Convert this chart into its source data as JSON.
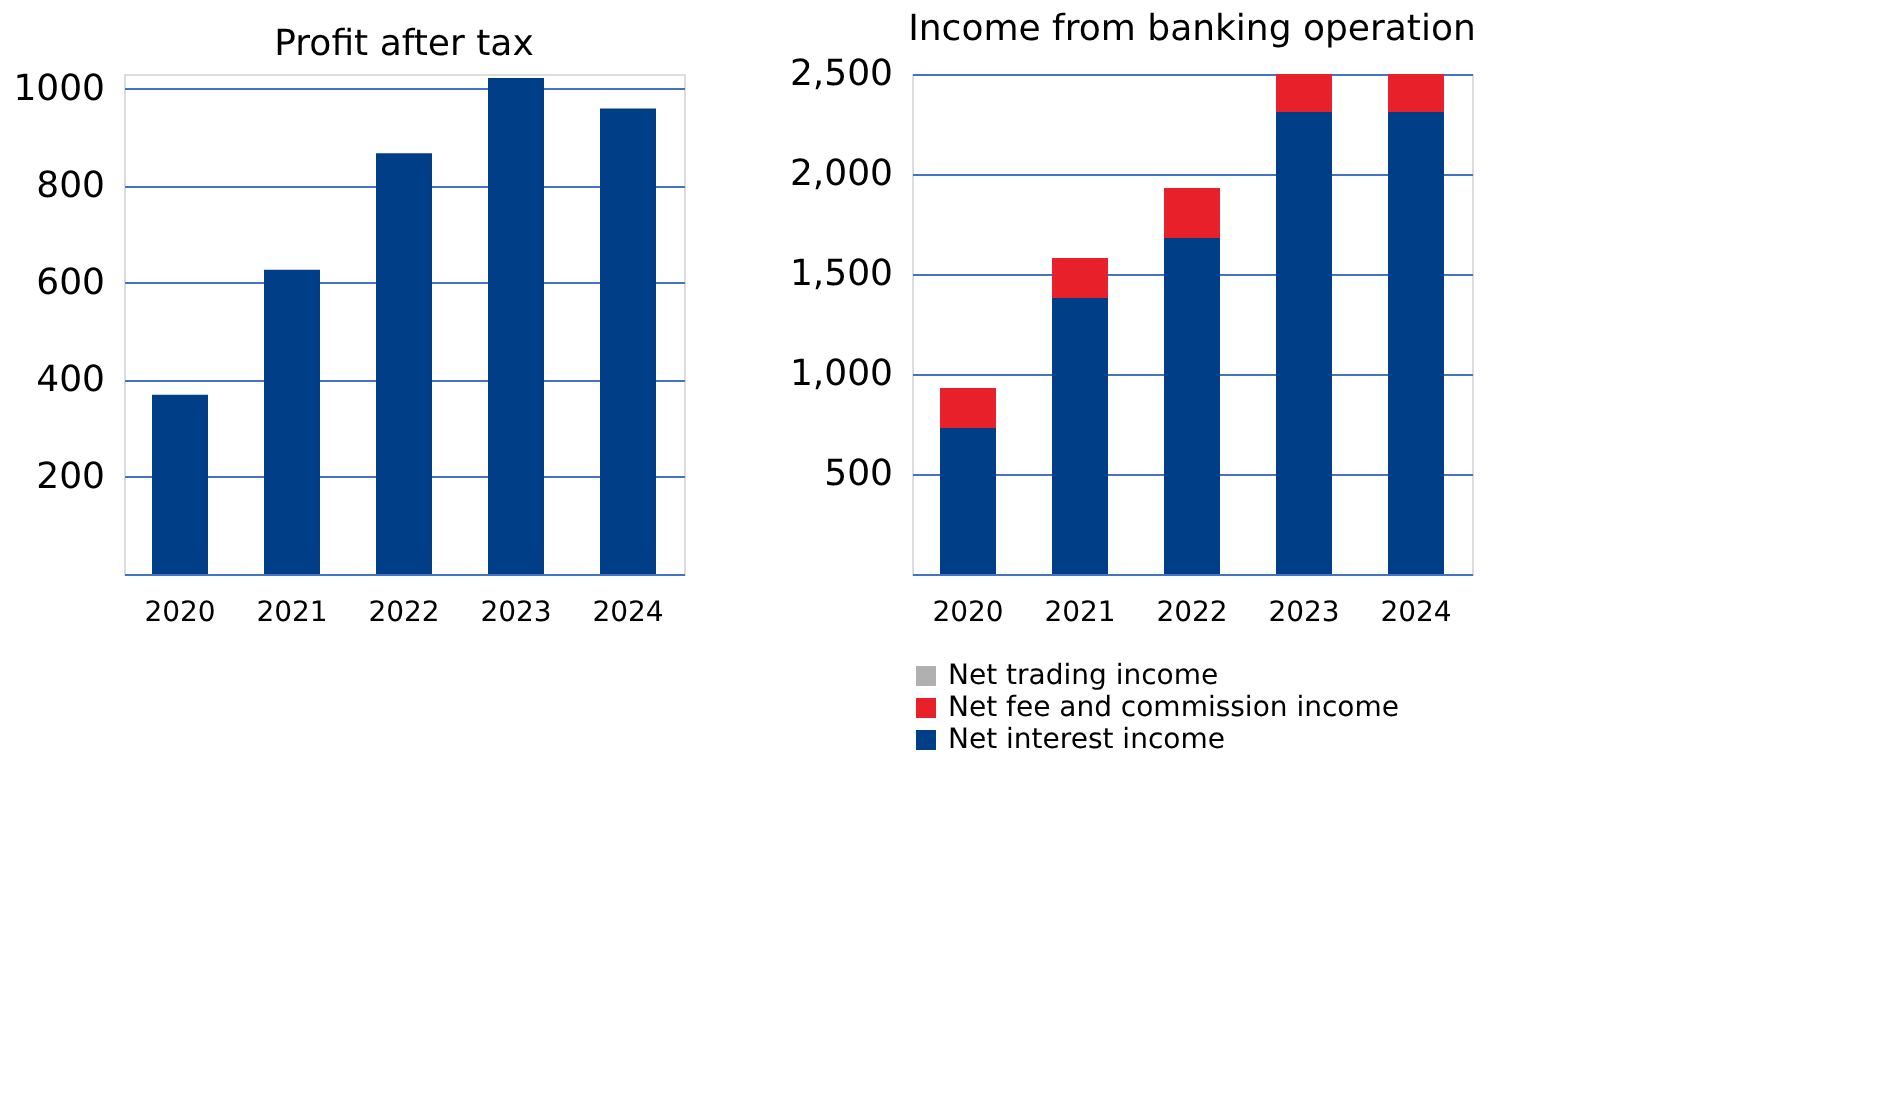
{
  "chart_data": [
    {
      "type": "bar",
      "title": "Profit after tax",
      "categories": [
        "2020",
        "2021",
        "2022",
        "2023",
        "2024"
      ],
      "series": [
        {
          "color": "#003f87",
          "values": [
            369,
            627,
            867,
            1022,
            959
          ]
        }
      ],
      "ylim": [
        0,
        1030
      ],
      "yticks": [
        200,
        400,
        600,
        800,
        1000
      ],
      "grid": "y",
      "legend": false
    },
    {
      "type": "bar",
      "title": "Income from banking operation",
      "categories": [
        "2020",
        "2021",
        "2022",
        "2023",
        "2024"
      ],
      "stacked": true,
      "series": [
        {
          "name": "Net interest income",
          "color": "#003f87",
          "values": [
            730,
            1380,
            1680,
            2310,
            2310
          ]
        },
        {
          "name": "Net fee and commission income",
          "color": "#e8202a",
          "values": [
            200,
            200,
            250,
            190,
            190
          ]
        },
        {
          "name": "Net trading income",
          "color": "#b0b0b0",
          "values": [
            null,
            null,
            null,
            null,
            null
          ]
        }
      ],
      "ylim": [
        0,
        2500
      ],
      "yticks": [
        500,
        {
          "value": 1000,
          "label": "1,000"
        },
        {
          "value": 1500,
          "label": "1,500"
        },
        {
          "value": 2000,
          "label": "2,000"
        },
        {
          "value": 2500,
          "label": "2,500"
        }
      ],
      "grid": "y",
      "legend": "bottom"
    }
  ]
}
